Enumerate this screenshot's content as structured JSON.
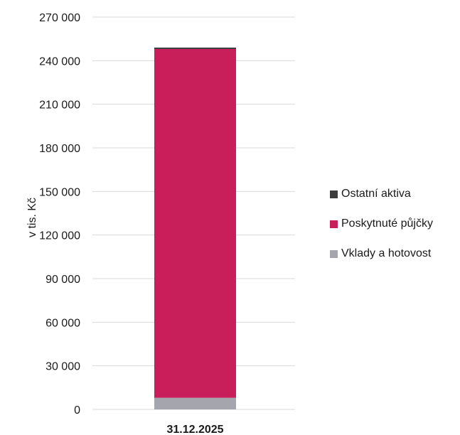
{
  "chart_data": {
    "type": "bar",
    "stacked": true,
    "categories": [
      "31.12.2025"
    ],
    "series": [
      {
        "name": "Vklady a hotovost",
        "values": [
          8000
        ],
        "color": "#A5A5AD"
      },
      {
        "name": "Poskytnuté půjčky",
        "values": [
          240000
        ],
        "color": "#C81F5A"
      },
      {
        "name": "Ostatní aktiva",
        "values": [
          1000
        ],
        "color": "#3C3C3C"
      }
    ],
    "legend_order": [
      "Ostatní aktiva",
      "Poskytnuté půjčky",
      "Vklady a hotovost"
    ],
    "ylabel": "v tis. Kč",
    "xlabel": "",
    "ylim": [
      0,
      270000
    ],
    "yticks": [
      "0",
      "30 000",
      "60 000",
      "90 000",
      "120 000",
      "150 000",
      "180 000",
      "210 000",
      "240 000",
      "270 000"
    ],
    "ytick_values": [
      0,
      30000,
      60000,
      90000,
      120000,
      150000,
      180000,
      210000,
      240000,
      270000
    ],
    "grid": true,
    "gridline_color": "#D9D9D9",
    "legend_position": "right"
  }
}
